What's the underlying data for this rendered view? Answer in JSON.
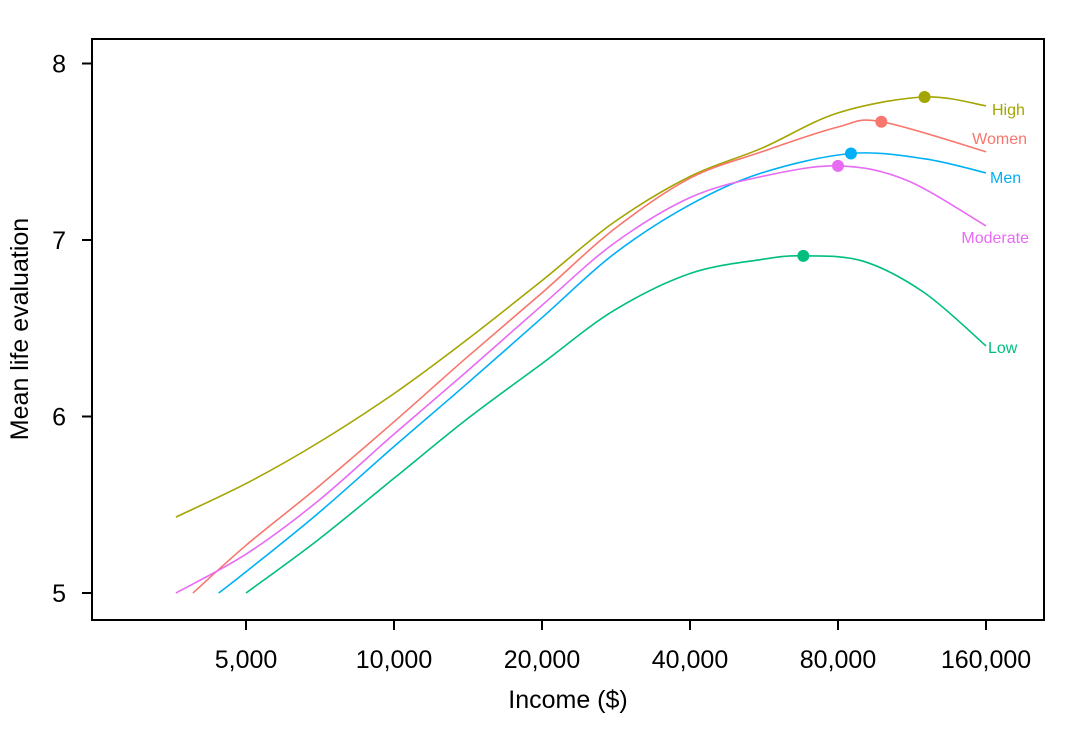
{
  "chart_data": {
    "type": "line",
    "title": "",
    "xlabel": "Income ($)",
    "ylabel": "Mean life evaluation",
    "xscale": "log",
    "xlim": [
      3200,
      190000
    ],
    "ylim": [
      4.85,
      8.15
    ],
    "xticks": [
      5000,
      10000,
      20000,
      40000,
      80000,
      160000
    ],
    "xtick_labels": [
      "5,000",
      "10,000",
      "20,000",
      "40,000",
      "80,000",
      "160,000"
    ],
    "yticks": [
      5,
      6,
      7,
      8
    ],
    "ytick_labels": [
      "5",
      "6",
      "7",
      "8"
    ],
    "grid": false,
    "legend": "direct labels at right end of each line",
    "series": [
      {
        "name": "High",
        "color": "#A3A500",
        "peak": {
          "x": 120000,
          "y": 7.81
        },
        "points": [
          [
            3600,
            5.43
          ],
          [
            5000,
            5.62
          ],
          [
            7000,
            5.85
          ],
          [
            10000,
            6.13
          ],
          [
            14000,
            6.43
          ],
          [
            20000,
            6.77
          ],
          [
            28000,
            7.1
          ],
          [
            40000,
            7.36
          ],
          [
            56000,
            7.52
          ],
          [
            80000,
            7.72
          ],
          [
            120000,
            7.81
          ],
          [
            160000,
            7.76
          ]
        ]
      },
      {
        "name": "Women",
        "color": "#F8766D",
        "peak": {
          "x": 98000,
          "y": 7.67
        },
        "points": [
          [
            3900,
            5.0
          ],
          [
            5000,
            5.27
          ],
          [
            7000,
            5.6
          ],
          [
            10000,
            5.97
          ],
          [
            14000,
            6.33
          ],
          [
            20000,
            6.7
          ],
          [
            28000,
            7.06
          ],
          [
            40000,
            7.35
          ],
          [
            56000,
            7.5
          ],
          [
            80000,
            7.64
          ],
          [
            98000,
            7.67
          ],
          [
            160000,
            7.5
          ]
        ]
      },
      {
        "name": "Men",
        "color": "#00B0F6",
        "peak": {
          "x": 85000,
          "y": 7.49
        },
        "points": [
          [
            4400,
            5.0
          ],
          [
            5000,
            5.12
          ],
          [
            7000,
            5.45
          ],
          [
            10000,
            5.83
          ],
          [
            14000,
            6.18
          ],
          [
            20000,
            6.56
          ],
          [
            28000,
            6.92
          ],
          [
            40000,
            7.2
          ],
          [
            56000,
            7.38
          ],
          [
            85000,
            7.49
          ],
          [
            120000,
            7.46
          ],
          [
            160000,
            7.38
          ]
        ]
      },
      {
        "name": "Moderate",
        "color": "#E76BF3",
        "peak": {
          "x": 80000,
          "y": 7.42
        },
        "points": [
          [
            3600,
            5.0
          ],
          [
            5000,
            5.22
          ],
          [
            7000,
            5.52
          ],
          [
            10000,
            5.9
          ],
          [
            14000,
            6.25
          ],
          [
            20000,
            6.63
          ],
          [
            28000,
            6.98
          ],
          [
            40000,
            7.24
          ],
          [
            56000,
            7.36
          ],
          [
            80000,
            7.42
          ],
          [
            110000,
            7.34
          ],
          [
            160000,
            7.08
          ]
        ]
      },
      {
        "name": "Low",
        "color": "#00BF7D",
        "peak": {
          "x": 68000,
          "y": 6.91
        },
        "points": [
          [
            5000,
            5.0
          ],
          [
            7000,
            5.3
          ],
          [
            10000,
            5.65
          ],
          [
            14000,
            5.98
          ],
          [
            20000,
            6.3
          ],
          [
            28000,
            6.6
          ],
          [
            40000,
            6.81
          ],
          [
            56000,
            6.89
          ],
          [
            68000,
            6.91
          ],
          [
            90000,
            6.88
          ],
          [
            120000,
            6.7
          ],
          [
            160000,
            6.4
          ]
        ]
      }
    ]
  },
  "axes": {
    "x_title": "Income ($)",
    "y_title": "Mean life evaluation"
  }
}
